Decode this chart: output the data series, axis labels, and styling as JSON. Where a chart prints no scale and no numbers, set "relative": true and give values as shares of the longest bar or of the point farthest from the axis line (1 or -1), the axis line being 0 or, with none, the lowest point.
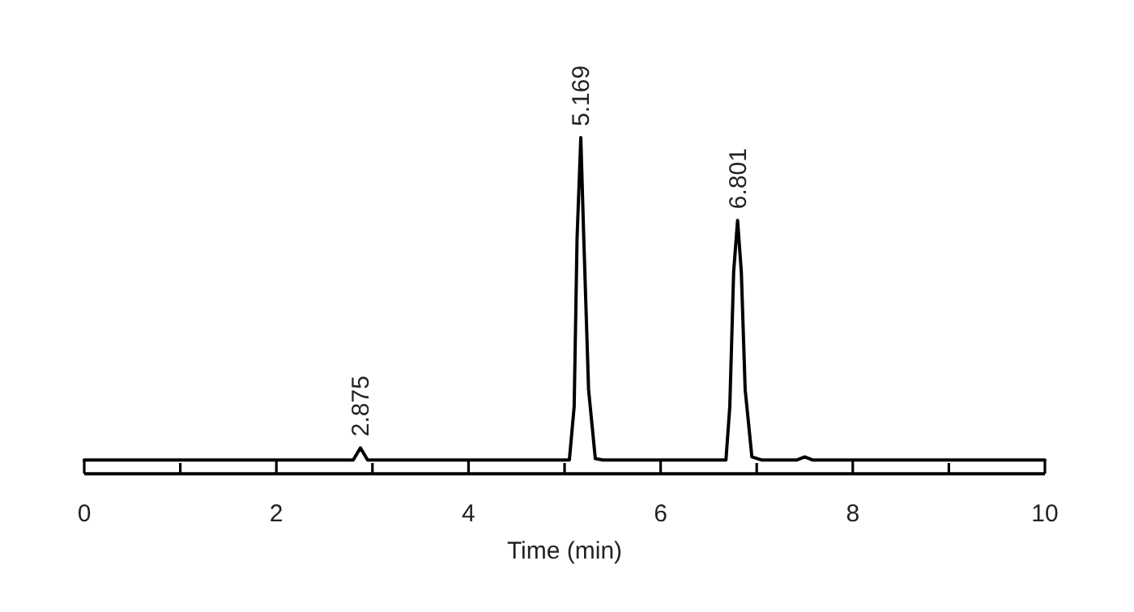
{
  "chart_data": {
    "type": "line",
    "relative": true,
    "xlabel": "Time (min)",
    "xlim": [
      0,
      10
    ],
    "xticks": [
      0,
      {
        "value": 1,
        "label": null
      },
      2,
      {
        "value": 3,
        "label": null
      },
      4,
      {
        "value": 5,
        "label": null
      },
      6,
      {
        "value": 7,
        "label": null
      },
      8,
      {
        "value": 9,
        "label": null
      },
      10
    ],
    "x": [
      0,
      2.8,
      2.875,
      2.95,
      5.05,
      5.1,
      5.13,
      5.169,
      5.2,
      5.25,
      5.32,
      5.4,
      6.68,
      6.72,
      6.76,
      6.801,
      6.84,
      6.88,
      6.95,
      7.05,
      7.42,
      7.5,
      7.58,
      10
    ],
    "series": [
      {
        "color": "#000000",
        "values": [
          0.041,
          0.041,
          0.077,
          0.041,
          0.041,
          0.2,
          0.7,
          1,
          0.7,
          0.25,
          0.045,
          0.041,
          0.041,
          0.2,
          0.6,
          0.754,
          0.6,
          0.25,
          0.05,
          0.041,
          0.041,
          0.05,
          0.041,
          0.041
        ]
      }
    ],
    "annotations": [
      {
        "text": "2.875",
        "x": 2.875,
        "y": 0.077
      },
      {
        "text": "5.169",
        "x": 5.169,
        "y": 1
      },
      {
        "text": "6.801",
        "x": 6.801,
        "y": 0.754
      }
    ],
    "grid": false
  }
}
